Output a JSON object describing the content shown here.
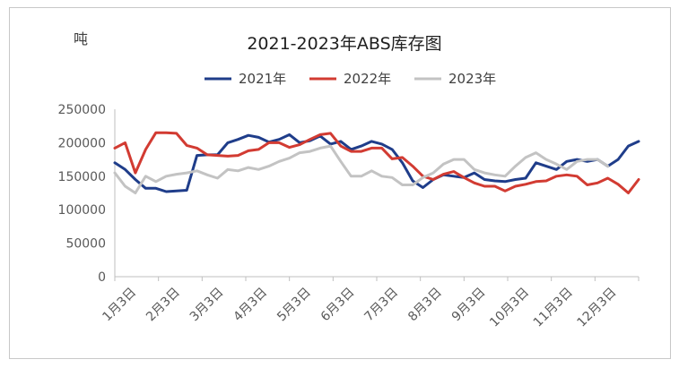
{
  "chart_data": {
    "type": "line",
    "title": "2021-2023年ABS库存图",
    "unit_label": "吨",
    "ylim": [
      0,
      250000
    ],
    "yticks": [
      0,
      50000,
      100000,
      150000,
      200000,
      250000
    ],
    "ytick_labels": [
      "0",
      "50000",
      "100000",
      "150000",
      "200000",
      "250000"
    ],
    "xticks": [
      "1月3日",
      "2月3日",
      "3月3日",
      "4月3日",
      "5月3日",
      "6月3日",
      "7月3日",
      "8月3日",
      "9月3日",
      "10月3日",
      "11月3日",
      "12月3日"
    ],
    "x_range": [
      1,
      52
    ],
    "legend_position": "top-center",
    "grid": false,
    "series": [
      {
        "name": "2021年",
        "color": "#1f3d8a",
        "x": [
          1,
          2,
          3,
          4,
          5,
          6,
          7,
          8,
          9,
          10,
          11,
          12,
          13,
          14,
          15,
          16,
          17,
          18,
          19,
          20,
          21,
          22,
          23,
          24,
          25,
          26,
          27,
          28,
          29,
          30,
          31,
          32,
          33,
          34,
          35,
          36,
          37,
          38,
          39,
          40,
          41,
          42,
          43,
          44,
          45,
          46,
          47,
          48,
          49,
          50,
          51,
          52
        ],
        "values": [
          170000,
          160000,
          145000,
          132000,
          132000,
          127000,
          128000,
          129000,
          181000,
          182000,
          182000,
          200000,
          205000,
          211000,
          208000,
          201000,
          205000,
          212000,
          200000,
          203000,
          210000,
          198000,
          202000,
          190000,
          195000,
          202000,
          198000,
          190000,
          170000,
          143000,
          133000,
          145000,
          152000,
          150000,
          148000,
          155000,
          145000,
          143000,
          142000,
          145000,
          147000,
          170000,
          165000,
          160000,
          172000,
          175000,
          172000,
          175000,
          165000,
          175000,
          195000,
          202000
        ]
      },
      {
        "name": "2022年",
        "color": "#d23b32",
        "x": [
          1,
          2,
          3,
          4,
          5,
          6,
          7,
          8,
          9,
          10,
          11,
          12,
          13,
          14,
          15,
          16,
          17,
          18,
          19,
          20,
          21,
          22,
          23,
          24,
          25,
          26,
          27,
          28,
          29,
          30,
          31,
          32,
          33,
          34,
          35,
          36,
          37,
          38,
          39,
          40,
          41,
          42,
          43,
          44,
          45,
          46,
          47,
          48,
          49,
          50,
          51,
          52
        ],
        "values": [
          192000,
          200000,
          155000,
          190000,
          215000,
          215000,
          214000,
          196000,
          192000,
          182000,
          181000,
          180000,
          181000,
          188000,
          190000,
          200000,
          200000,
          193000,
          197000,
          205000,
          212000,
          214000,
          195000,
          187000,
          187000,
          192000,
          192000,
          176000,
          178000,
          165000,
          150000,
          145000,
          153000,
          157000,
          148000,
          140000,
          135000,
          135000,
          128000,
          135000,
          138000,
          142000,
          143000,
          150000,
          152000,
          150000,
          137000,
          140000,
          147000,
          138000,
          125000,
          145000
        ]
      },
      {
        "name": "2023年",
        "color": "#c3c3c3",
        "x": [
          1,
          2,
          3,
          4,
          5,
          6,
          7,
          8,
          9,
          10,
          11,
          12,
          13,
          14,
          15,
          16,
          17,
          18,
          19,
          20,
          21,
          22,
          23,
          24,
          25,
          26,
          27,
          28,
          29,
          30,
          31,
          32,
          33,
          34,
          35,
          36,
          37,
          38,
          39,
          40,
          41,
          42,
          43,
          44,
          45,
          46,
          47,
          48,
          49
        ],
        "values": [
          155000,
          135000,
          125000,
          150000,
          142000,
          150000,
          153000,
          155000,
          158000,
          152000,
          147000,
          160000,
          158000,
          163000,
          160000,
          165000,
          172000,
          177000,
          185000,
          187000,
          192000,
          195000,
          172000,
          150000,
          150000,
          158000,
          150000,
          148000,
          137000,
          137000,
          148000,
          155000,
          168000,
          175000,
          175000,
          160000,
          155000,
          152000,
          150000,
          165000,
          178000,
          185000,
          175000,
          168000,
          160000,
          172000,
          175000,
          175000,
          165000
        ]
      }
    ]
  }
}
